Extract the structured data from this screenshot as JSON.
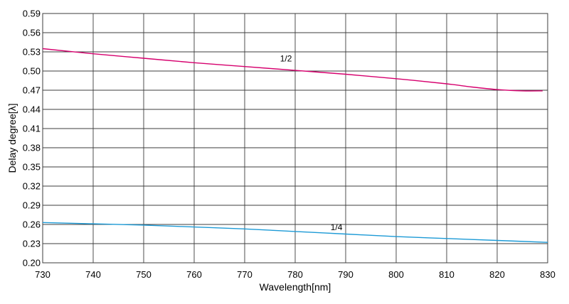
{
  "chart_data": {
    "type": "line",
    "xlabel": "Wavelength[nm]",
    "ylabel": "Delay degree[λ]",
    "xlim": [
      730,
      830
    ],
    "ylim": [
      0.2,
      0.59
    ],
    "x_ticks": [
      "730",
      "740",
      "750",
      "760",
      "770",
      "780",
      "790",
      "800",
      "810",
      "820",
      "830"
    ],
    "y_ticks": [
      "0.20",
      "0.23",
      "0.26",
      "0.29",
      "0.32",
      "0.35",
      "0.38",
      "0.41",
      "0.44",
      "0.47",
      "0.50",
      "0.53",
      "0.56",
      "0.59"
    ],
    "grid": true,
    "series": [
      {
        "name": "1/2",
        "color": "#d6006e",
        "x": [
          730,
          740,
          750,
          760,
          770,
          780,
          790,
          800,
          810,
          815,
          820,
          825,
          829
        ],
        "y": [
          0.535,
          0.527,
          0.52,
          0.513,
          0.507,
          0.501,
          0.495,
          0.488,
          0.48,
          0.475,
          0.471,
          0.469,
          0.469
        ]
      },
      {
        "name": "1/4",
        "color": "#1c9ad6",
        "x": [
          730,
          740,
          750,
          760,
          770,
          780,
          790,
          800,
          810,
          820,
          830
        ],
        "y": [
          0.263,
          0.261,
          0.259,
          0.256,
          0.253,
          0.249,
          0.245,
          0.241,
          0.238,
          0.235,
          0.232
        ]
      }
    ],
    "annotations": [
      {
        "text": "1/2",
        "x": 777,
        "y": 0.515
      },
      {
        "text": "1/4",
        "x": 787,
        "y": 0.251
      }
    ]
  }
}
